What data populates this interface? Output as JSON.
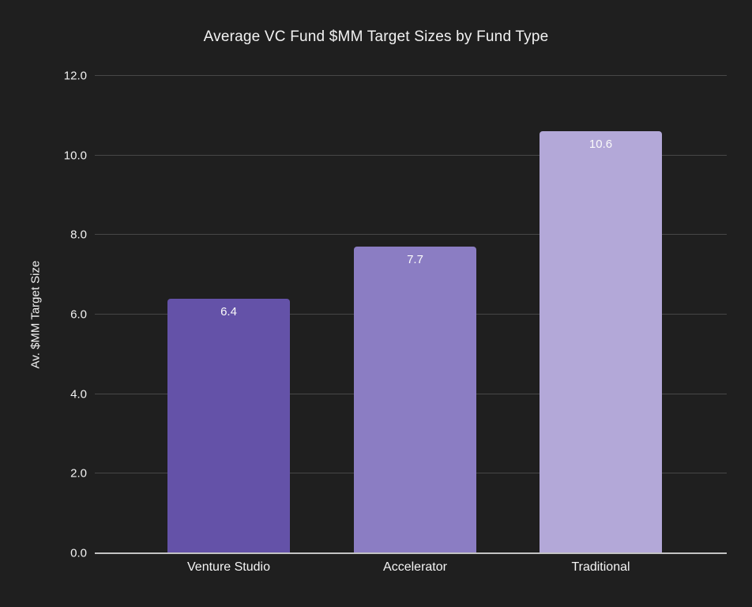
{
  "chart_data": {
    "type": "bar",
    "title": "Average VC Fund $MM Target Sizes by Fund Type",
    "ylabel": "Av. $MM Target Size",
    "xlabel": "",
    "categories": [
      "Venture Studio",
      "Accelerator",
      "Traditional"
    ],
    "values": [
      6.4,
      7.7,
      10.6
    ],
    "value_labels": [
      "6.4",
      "7.7",
      "10.6"
    ],
    "bar_colors": [
      "#6452a8",
      "#8b7dc3",
      "#b3a8d8"
    ],
    "ylim": [
      0,
      12
    ],
    "yticks": [
      0,
      2,
      4,
      6,
      8,
      10,
      12
    ],
    "ytick_labels": [
      "0.0",
      "2.0",
      "4.0",
      "6.0",
      "8.0",
      "10.0",
      "12.0"
    ],
    "grid": true,
    "legend": "none",
    "colors": {
      "background": "#1f1f1f",
      "gridline": "#474747",
      "axis_line": "#c3c3c3",
      "text": "#f2f2f2",
      "value_label_text": "#fafafa"
    }
  }
}
